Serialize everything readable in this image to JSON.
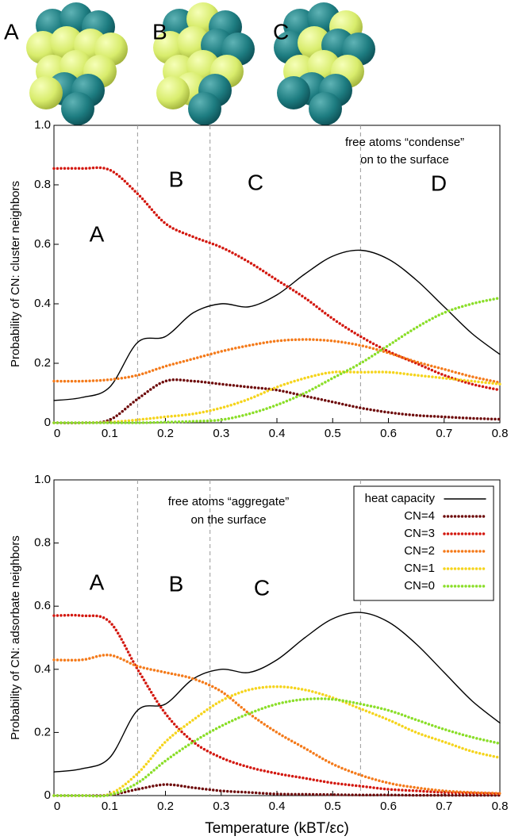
{
  "panels": [
    "A",
    "B",
    "C"
  ],
  "chart_data": [
    {
      "type": "line",
      "ylabel": "Probability of CN: cluster neighbors",
      "region_labels": [
        "A",
        "B",
        "C",
        "D"
      ],
      "note": [
        "free atoms “condense”",
        "on to the surface"
      ],
      "x": [
        0,
        0.05,
        0.1,
        0.15,
        0.2,
        0.25,
        0.3,
        0.35,
        0.4,
        0.45,
        0.5,
        0.55,
        0.6,
        0.65,
        0.7,
        0.75,
        0.8
      ],
      "xlim": [
        0,
        0.8
      ],
      "ylim": [
        0,
        1
      ],
      "xticks": [
        0,
        0.1,
        0.2,
        0.3,
        0.4,
        0.5,
        0.6,
        0.7,
        0.8
      ],
      "yticks": [
        0,
        0.2,
        0.4,
        0.6,
        0.8,
        {
          "value": 1,
          "label": "1.0"
        }
      ],
      "vlines": [
        0.15,
        0.28,
        0.55
      ],
      "series": [
        {
          "color": "#000000",
          "linestyle": "solid",
          "values": [
            0.075,
            0.085,
            0.12,
            0.27,
            0.29,
            0.37,
            0.4,
            0.39,
            0.43,
            0.5,
            0.56,
            0.58,
            0.55,
            0.48,
            0.39,
            0.3,
            0.23
          ]
        },
        {
          "color": "#6e0b0b",
          "linestyle": "dotted",
          "values": [
            0,
            0,
            0.01,
            0.08,
            0.14,
            0.14,
            0.13,
            0.12,
            0.11,
            0.09,
            0.07,
            0.05,
            0.035,
            0.025,
            0.02,
            0.015,
            0.012
          ]
        },
        {
          "color": "#d3180f",
          "linestyle": "dotted",
          "values": [
            0.855,
            0.855,
            0.85,
            0.77,
            0.67,
            0.625,
            0.59,
            0.54,
            0.48,
            0.42,
            0.35,
            0.29,
            0.24,
            0.2,
            0.16,
            0.13,
            0.11
          ]
        },
        {
          "color": "#f47a1a",
          "linestyle": "dotted",
          "values": [
            0.14,
            0.14,
            0.145,
            0.16,
            0.19,
            0.215,
            0.24,
            0.26,
            0.275,
            0.28,
            0.275,
            0.26,
            0.235,
            0.205,
            0.18,
            0.155,
            0.135
          ]
        },
        {
          "color": "#f5d41c",
          "linestyle": "dotted",
          "values": [
            0,
            0,
            0.002,
            0.01,
            0.02,
            0.03,
            0.05,
            0.08,
            0.12,
            0.15,
            0.17,
            0.17,
            0.17,
            0.16,
            0.15,
            0.14,
            0.13
          ]
        },
        {
          "color": "#8ade28",
          "linestyle": "dotted",
          "values": [
            0,
            0,
            0,
            0,
            0.002,
            0.005,
            0.01,
            0.03,
            0.06,
            0.1,
            0.15,
            0.2,
            0.26,
            0.32,
            0.37,
            0.4,
            0.42
          ]
        }
      ]
    },
    {
      "type": "line",
      "ylabel": "Probability of CN: adsorbate neighbors",
      "xlabel": "Temperature (kBT/εc)",
      "region_labels": [
        "A",
        "B",
        "C"
      ],
      "note": [
        "free atoms “aggregate”",
        "on the surface"
      ],
      "x": [
        0,
        0.05,
        0.1,
        0.15,
        0.2,
        0.25,
        0.3,
        0.35,
        0.4,
        0.45,
        0.5,
        0.55,
        0.6,
        0.65,
        0.7,
        0.75,
        0.8
      ],
      "xlim": [
        0,
        0.8
      ],
      "ylim": [
        0,
        1
      ],
      "xticks": [
        0,
        0.1,
        0.2,
        0.3,
        0.4,
        0.5,
        0.6,
        0.7,
        0.8
      ],
      "yticks": [
        0,
        0.2,
        0.4,
        0.6,
        0.8,
        {
          "value": 1,
          "label": "1.0"
        }
      ],
      "vlines": [
        0.15,
        0.28,
        0.55
      ],
      "legend": "upper right",
      "series": [
        {
          "name": "heat capacity",
          "color": "#000000",
          "linestyle": "solid",
          "values": [
            0.075,
            0.085,
            0.12,
            0.27,
            0.29,
            0.37,
            0.4,
            0.39,
            0.43,
            0.5,
            0.56,
            0.58,
            0.55,
            0.48,
            0.39,
            0.3,
            0.23
          ]
        },
        {
          "name": "CN=4",
          "color": "#6e0b0b",
          "linestyle": "dotted",
          "values": [
            0,
            0,
            0.002,
            0.02,
            0.035,
            0.025,
            0.015,
            0.01,
            0.005,
            0.004,
            0.003,
            0.002,
            0.002,
            0.001,
            0.001,
            0.001,
            0.001
          ]
        },
        {
          "name": "CN=3",
          "color": "#d3180f",
          "linestyle": "dotted",
          "values": [
            0.57,
            0.57,
            0.55,
            0.4,
            0.26,
            0.17,
            0.12,
            0.09,
            0.07,
            0.055,
            0.04,
            0.03,
            0.02,
            0.015,
            0.01,
            0.008,
            0.006
          ]
        },
        {
          "name": "CN=2",
          "color": "#f47a1a",
          "linestyle": "dotted",
          "values": [
            0.43,
            0.43,
            0.445,
            0.41,
            0.39,
            0.37,
            0.33,
            0.26,
            0.2,
            0.15,
            0.1,
            0.065,
            0.04,
            0.025,
            0.015,
            0.01,
            0.007
          ]
        },
        {
          "name": "CN=1",
          "color": "#f5d41c",
          "linestyle": "dotted",
          "values": [
            0,
            0,
            0.005,
            0.07,
            0.17,
            0.24,
            0.3,
            0.335,
            0.345,
            0.335,
            0.31,
            0.275,
            0.24,
            0.2,
            0.17,
            0.14,
            0.12
          ]
        },
        {
          "name": "CN=0",
          "color": "#8ade28",
          "linestyle": "dotted",
          "values": [
            0,
            0,
            0.002,
            0.04,
            0.11,
            0.17,
            0.22,
            0.26,
            0.29,
            0.305,
            0.305,
            0.29,
            0.27,
            0.24,
            0.21,
            0.185,
            0.165
          ]
        }
      ]
    }
  ]
}
